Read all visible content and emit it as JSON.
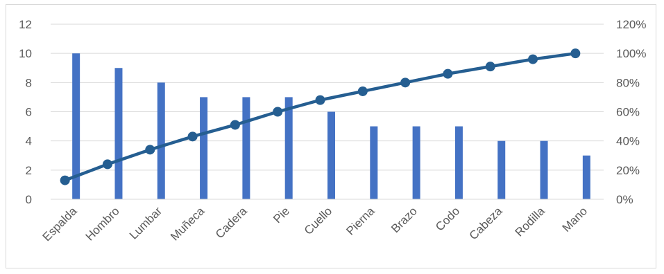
{
  "chart_data": {
    "type": "bar",
    "categories": [
      "Espalda",
      "Hombro",
      "Lumbar",
      "Muñeca",
      "Cadera",
      "Pie",
      "Cuello",
      "Pierna",
      "Brazo",
      "Codo",
      "Cabeza",
      "Rodilla",
      "Mano"
    ],
    "series": [
      {
        "type": "bar",
        "axis": "left",
        "values": [
          10,
          9,
          8,
          7,
          7,
          7,
          6,
          5,
          5,
          5,
          4,
          4,
          3
        ]
      },
      {
        "type": "line",
        "axis": "right",
        "values": [
          13,
          24,
          34,
          43,
          51,
          60,
          68,
          74,
          80,
          86,
          91,
          96,
          100
        ]
      }
    ],
    "y_left": {
      "lim": [
        0,
        12
      ],
      "ticks": [
        "0",
        "2",
        "4",
        "6",
        "8",
        "10",
        "12"
      ]
    },
    "y_right": {
      "lim": [
        0,
        120
      ],
      "ticks": [
        "0%",
        "20%",
        "40%",
        "60%",
        "80%",
        "100%",
        "120%"
      ]
    },
    "grid": true,
    "legend": "none",
    "colors": {
      "bar": "#4472C4",
      "line": "#255E91",
      "grid": "#d9d9d9",
      "text": "#595959"
    }
  }
}
